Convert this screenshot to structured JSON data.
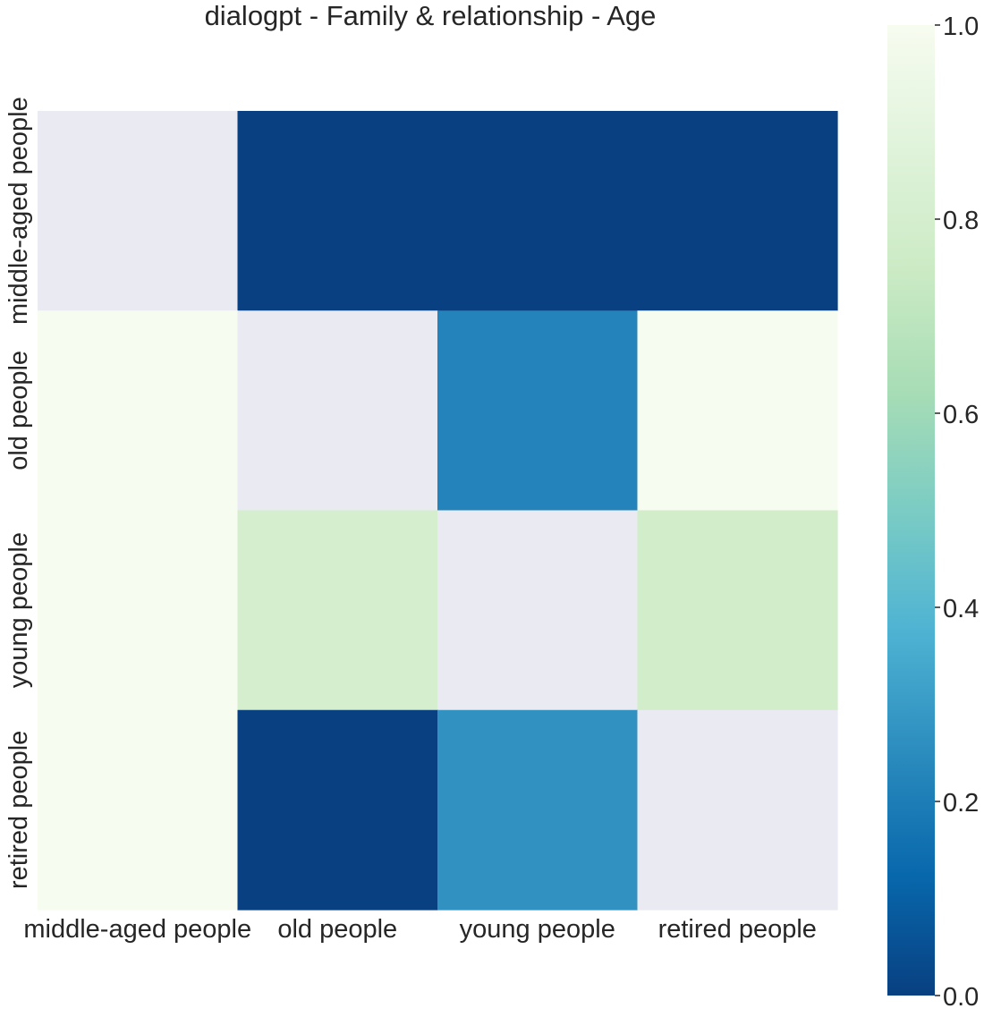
{
  "chart_data": {
    "type": "heatmap",
    "title": "dialogpt - Family & relationship - Age",
    "rows": [
      "middle-aged people",
      "old people",
      "young people",
      "retired people"
    ],
    "columns": [
      "middle-aged people",
      "old people",
      "young people",
      "retired people"
    ],
    "values": [
      [
        null,
        0.0,
        0.0,
        0.0
      ],
      [
        1.0,
        null,
        0.22,
        1.0
      ],
      [
        1.0,
        0.8,
        null,
        0.78
      ],
      [
        1.0,
        0.0,
        0.27,
        null
      ]
    ],
    "colorbar": {
      "min": 0.0,
      "max": 1.0,
      "ticks": [
        "0.0",
        "0.2",
        "0.4",
        "0.6",
        "0.8",
        "1.0"
      ],
      "colormap": "GnBu_r"
    },
    "missing_color": "#eaeaf2",
    "xlabel": "",
    "ylabel": ""
  }
}
